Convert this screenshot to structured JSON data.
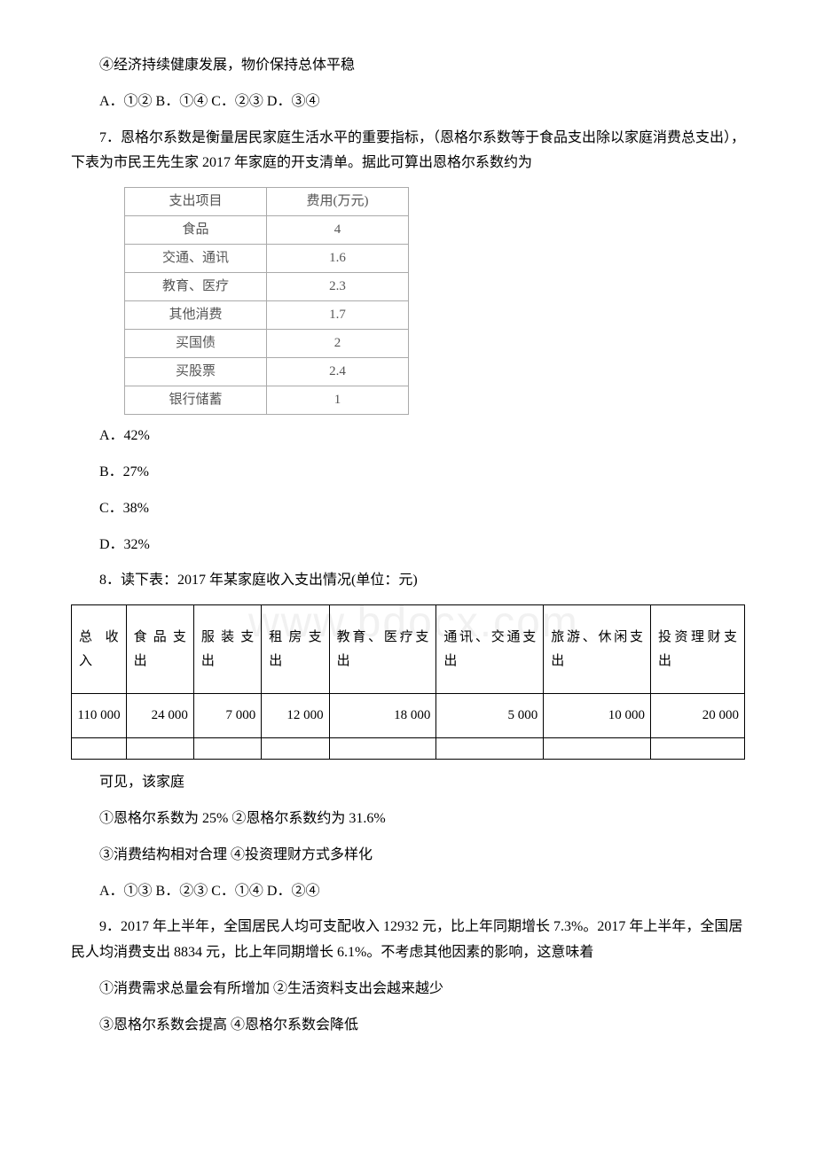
{
  "q6": {
    "stmt4": "④经济持续健康发展，物价保持总体平稳",
    "choices": "A．①② B．①④ C．②③ D．③④"
  },
  "q7": {
    "stem": "7．恩格尔系数是衡量居民家庭生活水平的重要指标，（恩格尔系数等于食品支出除以家庭消费总支出），下表为市民王先生家 2017 年家庭的开支清单。据此可算出恩格尔系数约为",
    "table": {
      "head_item": "支出项目",
      "head_cost": "费用(万元)",
      "rows": [
        {
          "label": "食品",
          "value": "4"
        },
        {
          "label": "交通、通讯",
          "value": "1.6"
        },
        {
          "label": "教育、医疗",
          "value": "2.3"
        },
        {
          "label": "其他消费",
          "value": "1.7"
        },
        {
          "label": "买国债",
          "value": "2"
        },
        {
          "label": "买股票",
          "value": "2.4"
        },
        {
          "label": "银行储蓄",
          "value": "1"
        }
      ]
    },
    "optA": "A．42%",
    "optB": "B．27%",
    "optC": "C．38%",
    "optD": "D．32%"
  },
  "q8": {
    "stem": "8．读下表：2017 年某家庭收入支出情况(单位：元)",
    "headers": [
      "总收入",
      "食品支出",
      "服装支出",
      "租房支出",
      "教育、医疗支出",
      "通讯、交通支出",
      "旅游、休闲支出",
      "投资理财支出"
    ],
    "values": [
      "110 000",
      "24 000",
      "7 000",
      "12 000",
      "18 000",
      "5 000",
      "10 000",
      "20 000"
    ],
    "after": "可见，该家庭",
    "s1": "①恩格尔系数为 25% ②恩格尔系数约为 31.6%",
    "s2": "③消费结构相对合理 ④投资理财方式多样化",
    "choices": "A．①③ B．②③ C．①④ D．②④"
  },
  "q9": {
    "stem": "9．2017 年上半年，全国居民人均可支配收入 12932 元，比上年同期增长 7.3%。2017 年上半年，全国居民人均消费支出 8834 元，比上年同期增长 6.1%。不考虑其他因素的影响，这意味着",
    "s1": "①消费需求总量会有所增加 ②生活资料支出会越来越少",
    "s2": "③恩格尔系数会提高 ④恩格尔系数会降低"
  },
  "watermark": "www.bdocx.com"
}
